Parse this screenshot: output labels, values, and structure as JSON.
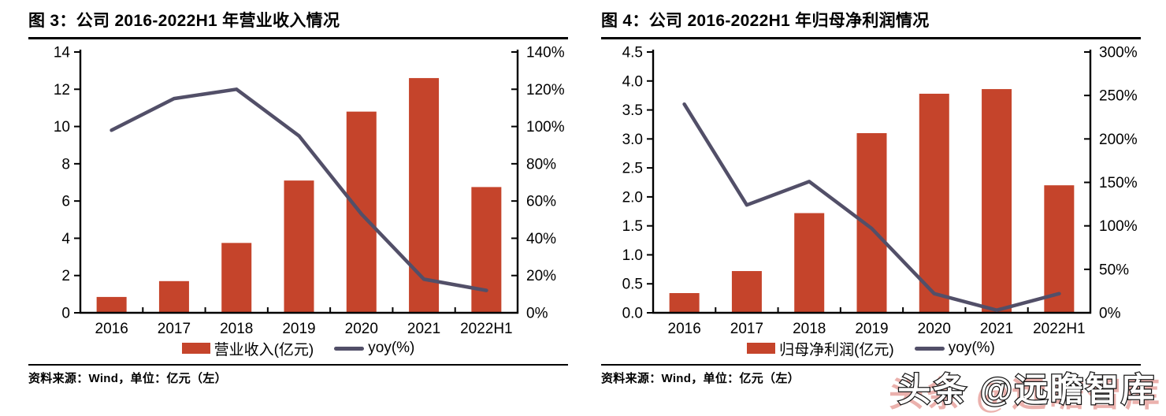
{
  "page": {
    "watermark": "头条 @远瞻智库",
    "colors": {
      "bar": "#C5442B",
      "line": "#524F68",
      "axis": "#000000"
    }
  },
  "charts": [
    {
      "title": "图 3：公司 2016-2022H1 年营业收入情况",
      "source": "资料来源：Wind，单位：亿元（左）",
      "legend": [
        {
          "label": "营业收入(亿元)",
          "type": "bar"
        },
        {
          "label": "yoy(%)",
          "type": "line"
        }
      ],
      "chart_data": {
        "type": "bar+line",
        "categories": [
          "2016",
          "2017",
          "2018",
          "2019",
          "2020",
          "2021",
          "2022H1"
        ],
        "series": [
          {
            "name": "营业收入(亿元)",
            "type": "bar",
            "axis": "left",
            "values": [
              0.85,
              1.7,
              3.75,
              7.1,
              10.8,
              12.6,
              6.75
            ]
          },
          {
            "name": "yoy(%)",
            "type": "line",
            "axis": "right",
            "values": [
              98,
              115,
              120,
              95,
              53,
              18,
              12
            ]
          }
        ],
        "left_axis": {
          "min": 0,
          "max": 14,
          "step": 2,
          "decimals": 0
        },
        "right_axis": {
          "min": 0,
          "max": 140,
          "step": 20,
          "suffix": "%"
        },
        "grid": false,
        "legend_position": "bottom"
      }
    },
    {
      "title": "图 4：公司 2016-2022H1 年归母净利润情况",
      "source": "资料来源：Wind，单位：亿元（左）",
      "legend": [
        {
          "label": "归母净利润(亿元)",
          "type": "bar"
        },
        {
          "label": "yoy(%)",
          "type": "line"
        }
      ],
      "chart_data": {
        "type": "bar+line",
        "categories": [
          "2016",
          "2017",
          "2018",
          "2019",
          "2020",
          "2021",
          "2022H1"
        ],
        "series": [
          {
            "name": "归母净利润(亿元)",
            "type": "bar",
            "axis": "left",
            "values": [
              0.34,
              0.72,
              1.72,
              3.1,
              3.78,
              3.86,
              2.2
            ]
          },
          {
            "name": "yoy(%)",
            "type": "line",
            "axis": "right",
            "values": [
              240,
              124,
              151,
              97,
              22,
              3,
              22
            ]
          }
        ],
        "left_axis": {
          "min": 0,
          "max": 4.5,
          "step": 0.5,
          "decimals": 1
        },
        "right_axis": {
          "min": 0,
          "max": 300,
          "step": 50,
          "suffix": "%"
        },
        "grid": false,
        "legend_position": "bottom"
      }
    }
  ]
}
